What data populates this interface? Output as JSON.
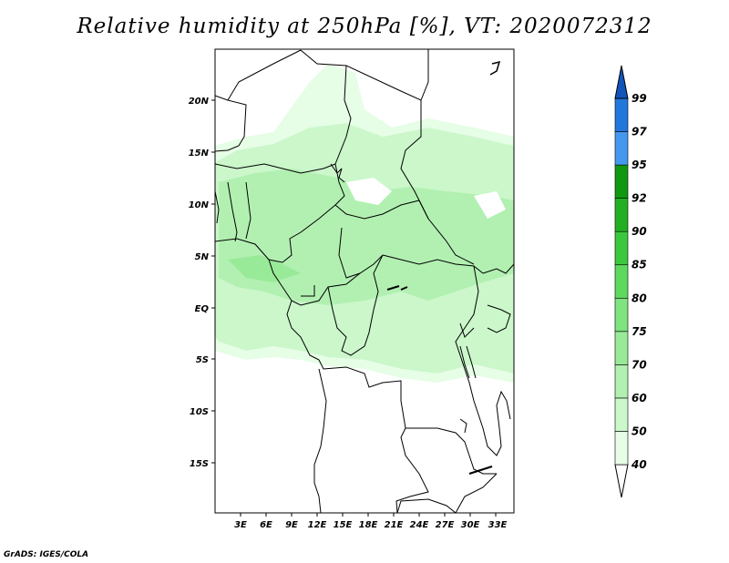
{
  "title": "Relative humidity at 250hPa [%], VT: 2020072312",
  "credit": "GrADS: IGES/COLA",
  "map": {
    "lon_ticks": [
      "3E",
      "6E",
      "9E",
      "12E",
      "15E",
      "18E",
      "21E",
      "24E",
      "27E",
      "30E",
      "33E"
    ],
    "lat_ticks": [
      "20N",
      "15N",
      "10N",
      "5N",
      "EQ",
      "5S",
      "10S",
      "15S"
    ]
  },
  "colorbar": {
    "levels": [
      "40",
      "50",
      "60",
      "70",
      "75",
      "80",
      "85",
      "90",
      "92",
      "95",
      "97",
      "99"
    ],
    "colors": [
      "#ffffff",
      "#e6fde6",
      "#cbf7cb",
      "#b2f0b2",
      "#98ea98",
      "#7fe37f",
      "#5fd85f",
      "#3cc83c",
      "#22b022",
      "#119811",
      "#4499ee",
      "#2277dd",
      "#1155bb"
    ]
  }
}
